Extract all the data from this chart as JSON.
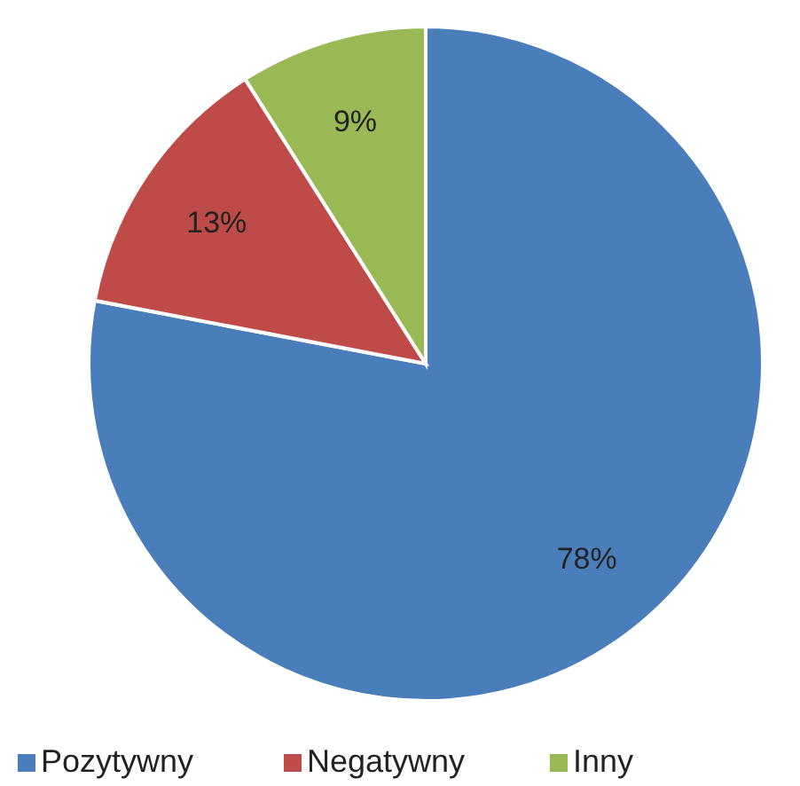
{
  "chart_data": {
    "type": "pie",
    "categories": [
      "Pozytywny",
      "Negatywny",
      "Inny"
    ],
    "values": [
      78,
      13,
      9
    ],
    "colors": [
      "#4a7ebb",
      "#be4b48",
      "#98b954"
    ],
    "value_labels": [
      "78%",
      "13%",
      "9%"
    ],
    "legend": "bottom"
  }
}
